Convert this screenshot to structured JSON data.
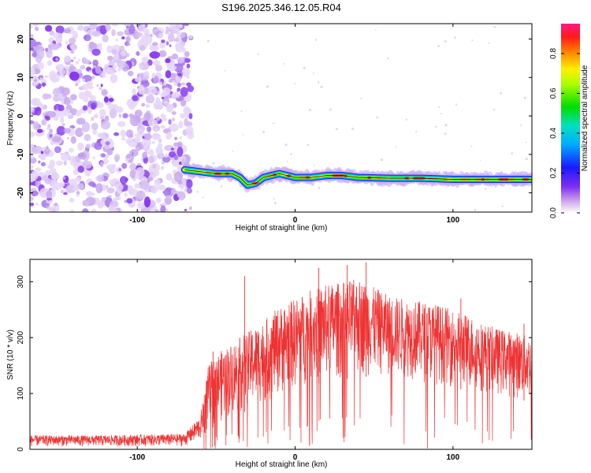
{
  "chart_data": [
    {
      "type": "heatmap",
      "title": "S196.2025.346.12.05.R04",
      "xlabel": "Height of straight line (km)",
      "ylabel": "Frequency (Hz)",
      "xlim": [
        -168,
        150
      ],
      "ylim": [
        -25,
        24
      ],
      "x_ticks": [
        "-100",
        "0",
        "100"
      ],
      "x_tick_values": [
        -100,
        0,
        100
      ],
      "y_ticks": [
        "20",
        "10",
        "0",
        "-10",
        "-20"
      ],
      "y_tick_values": [
        20,
        10,
        0,
        -10,
        -20
      ],
      "noise_region_x": [
        -168,
        -68
      ],
      "signal_track": {
        "x": [
          -70,
          -60,
          -50,
          -40,
          -35,
          -30,
          -25,
          -20,
          -15,
          -10,
          0,
          10,
          20,
          30,
          40,
          60,
          80,
          100,
          120,
          140,
          150
        ],
        "y": [
          -14,
          -14.5,
          -15,
          -15,
          -16,
          -18,
          -17.5,
          -16,
          -15.5,
          -15,
          -16,
          -16,
          -15.5,
          -15.5,
          -16,
          -16.2,
          -16.2,
          -16.5,
          -16.5,
          -16.5,
          -16.5
        ]
      },
      "colorbar": {
        "label": "Normalized spectral amplitude",
        "ticks": [
          "0.8",
          "0.6",
          "0.4",
          "0.2",
          "0.0"
        ],
        "tick_values": [
          0.8,
          0.6,
          0.4,
          0.2,
          0.0
        ],
        "range": [
          0,
          0.95
        ]
      }
    },
    {
      "type": "line",
      "title": "",
      "xlabel": "Height of straight line (km)",
      "ylabel": "SNR (10 * v/v)",
      "xlim": [
        -168,
        150
      ],
      "ylim": [
        0,
        340
      ],
      "x_ticks": [
        "-100",
        "0",
        "100"
      ],
      "x_tick_values": [
        -100,
        0,
        100
      ],
      "y_ticks": [
        "300",
        "200",
        "100",
        "0"
      ],
      "y_tick_values": [
        300,
        200,
        100,
        0
      ],
      "color": "#ee3333",
      "envelope": {
        "x": [
          -168,
          -120,
          -70,
          -60,
          -55,
          -50,
          -40,
          -30,
          -20,
          -10,
          0,
          10,
          20,
          30,
          40,
          50,
          60,
          70,
          80,
          90,
          100,
          110,
          120,
          130,
          140,
          150
        ],
        "upper": [
          25,
          25,
          28,
          60,
          150,
          170,
          190,
          210,
          230,
          255,
          270,
          285,
          295,
          300,
          305,
          290,
          275,
          270,
          265,
          260,
          250,
          240,
          225,
          215,
          210,
          200
        ],
        "lower": [
          5,
          5,
          5,
          15,
          30,
          45,
          55,
          70,
          80,
          95,
          105,
          115,
          120,
          125,
          130,
          130,
          130,
          125,
          120,
          115,
          110,
          105,
          100,
          95,
          90,
          85
        ]
      },
      "spikes": [
        {
          "x": -52,
          "y": 175
        },
        {
          "x": -32,
          "y": 310
        },
        {
          "x": 15,
          "y": 325
        },
        {
          "x": 33,
          "y": 330
        },
        {
          "x": 45,
          "y": 335
        },
        {
          "x": 105,
          "y": 270
        },
        {
          "x": 145,
          "y": 225
        }
      ]
    }
  ]
}
